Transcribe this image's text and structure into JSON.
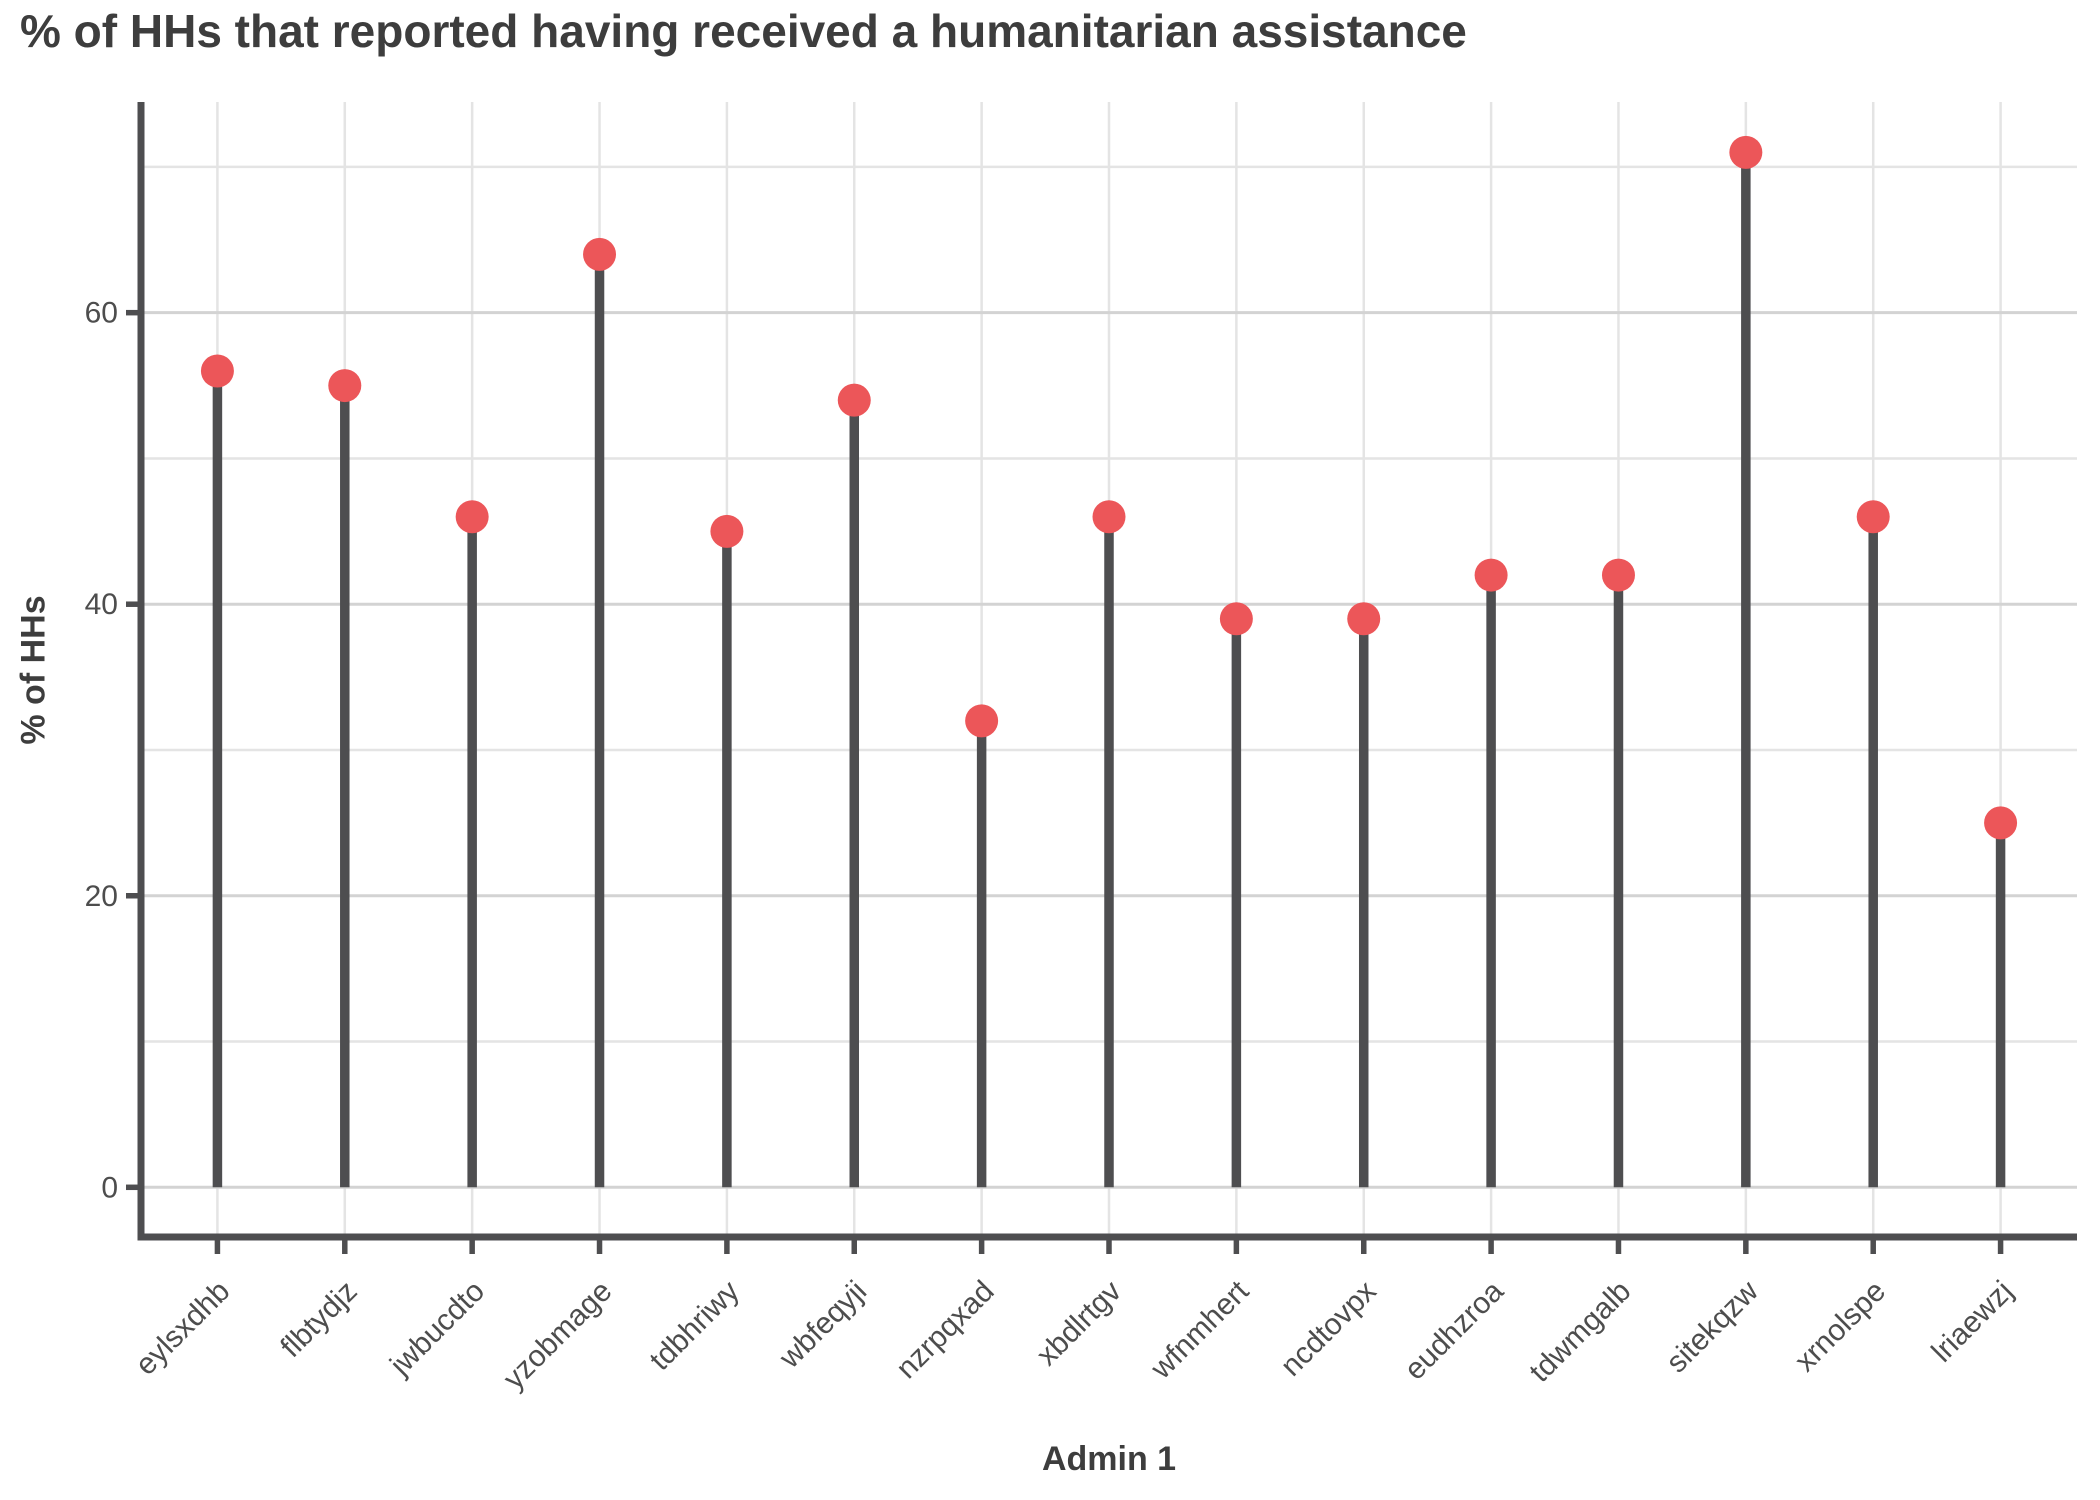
{
  "chart_data": {
    "type": "bar",
    "variant": "lollipop",
    "title": "% of HHs that reported having received a humanitarian assistance",
    "xlabel": "Admin 1",
    "ylabel": "% of HHs",
    "categories": [
      "eylsxdhb",
      "flbtydjz",
      "jwbucdto",
      "yzobmage",
      "tdbhriwy",
      "wbfeqyji",
      "nzrpqxad",
      "xbdlrtgv",
      "wfnmhert",
      "ncdtovpx",
      "eudhzroa",
      "tdwmgalb",
      "sitekqzw",
      "xrnolspe",
      "lriaewzj"
    ],
    "values": [
      56,
      55,
      46,
      64,
      45,
      54,
      32,
      46,
      39,
      39,
      42,
      42,
      71,
      46,
      25
    ],
    "ylim": [
      -3.5,
      74.4
    ],
    "yticks": [
      0,
      20,
      40,
      60
    ],
    "yticks_minor": [
      10,
      30,
      50,
      70
    ],
    "grid": true,
    "legend_position": "none",
    "colors": {
      "dot": "#EC5659",
      "stem": "#4E4E50",
      "axis": "#4E4E50",
      "tick_label": "#4D4D4D",
      "title": "#3D3D3D",
      "grid_major": "#D3D3D3",
      "grid_minor": "#E4E4E4",
      "grid_vertical": "#E4E4E4",
      "background": "#FFFFFF"
    }
  }
}
